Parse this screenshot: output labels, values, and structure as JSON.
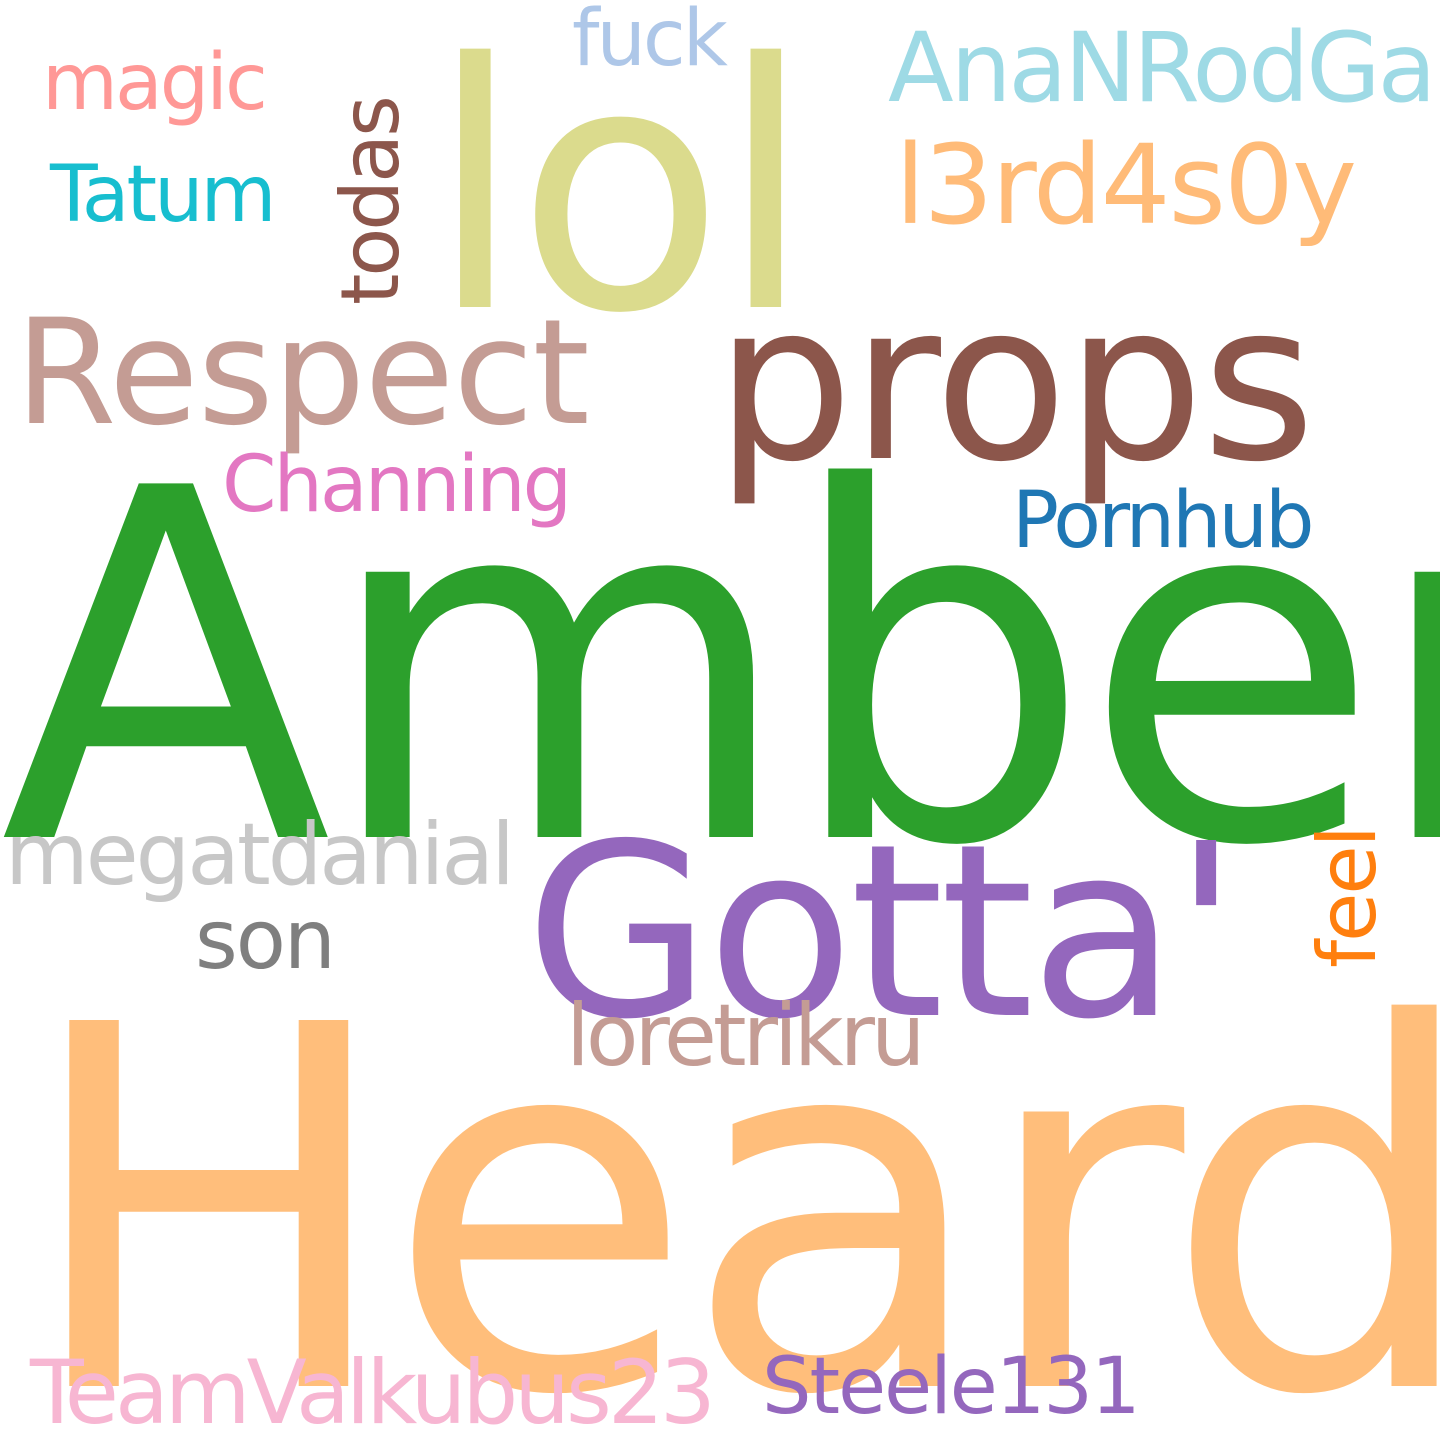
{
  "background": "#ffffff",
  "words": {
    "heard": {
      "text": "Heard",
      "color": "#ffbe7b"
    },
    "amber": {
      "text": "Amber",
      "color": "#2ca02c"
    },
    "lol": {
      "text": "lol",
      "color": "#dbdb8d"
    },
    "gotta": {
      "text": "Gotta'",
      "color": "#9467bd"
    },
    "props": {
      "text": "props",
      "color": "#8c564b"
    },
    "respect": {
      "text": "Respect",
      "color": "#c49c94"
    },
    "l3rd": {
      "text": "l3rd4s0y",
      "color": "#ffbb78"
    },
    "ananrod": {
      "text": "AnaNRodGar",
      "color": "#9edae5"
    },
    "megat": {
      "text": "megatdanial",
      "color": "#c7c7c7"
    },
    "loretri": {
      "text": "loretrikru",
      "color": "#c49c94"
    },
    "team": {
      "text": "TeamValkubus23",
      "color": "#f7b6d2"
    },
    "steele": {
      "text": "Steele131",
      "color": "#9467bd"
    },
    "channing": {
      "text": "Channing",
      "color": "#e377c2"
    },
    "pornhub": {
      "text": "Pornhub",
      "color": "#1f77b4"
    },
    "magic": {
      "text": "magic",
      "color": "#ff9896"
    },
    "tatum": {
      "text": "Tatum",
      "color": "#17becf"
    },
    "fuck": {
      "text": "fuck",
      "color": "#aec7e8"
    },
    "son": {
      "text": "son",
      "color": "#7f7f7f"
    },
    "todas": {
      "text": "todas",
      "color": "#8c564b"
    },
    "feel": {
      "text": "feel",
      "color": "#ff7f0e"
    }
  }
}
